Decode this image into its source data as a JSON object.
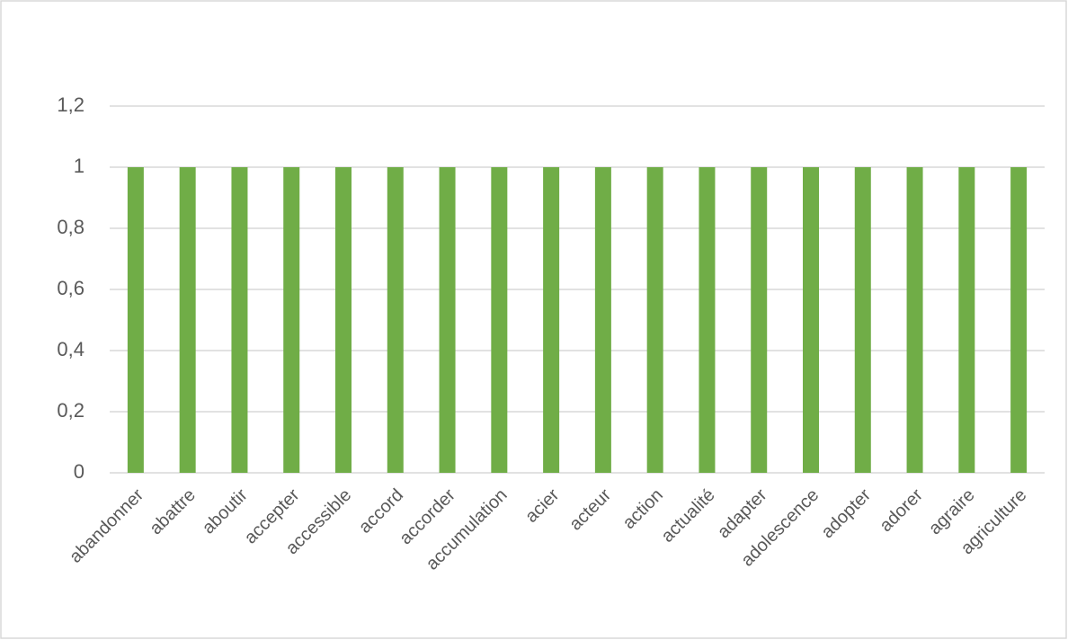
{
  "chart_data": {
    "type": "bar",
    "categories": [
      "abandonner",
      "abattre",
      "aboutir",
      "accepter",
      "accessible",
      "accord",
      "accorder",
      "accumulation",
      "acier",
      "acteur",
      "action",
      "actualité",
      "adapter",
      "adolescence",
      "adopter",
      "adorer",
      "agraire",
      "agriculture"
    ],
    "values": [
      1,
      1,
      1,
      1,
      1,
      1,
      1,
      1,
      1,
      1,
      1,
      1,
      1,
      1,
      1,
      1,
      1,
      1
    ],
    "color": "#70ad47",
    "ylim": [
      0,
      1.2
    ],
    "yticks": [
      0,
      {
        "value": 0.2,
        "label": "0,2"
      },
      {
        "value": 0.4,
        "label": "0,4"
      },
      {
        "value": 0.6,
        "label": "0,6"
      },
      {
        "value": 0.8,
        "label": "0,8"
      },
      1,
      {
        "value": 1.2,
        "label": "1,2"
      }
    ],
    "grid": true
  }
}
